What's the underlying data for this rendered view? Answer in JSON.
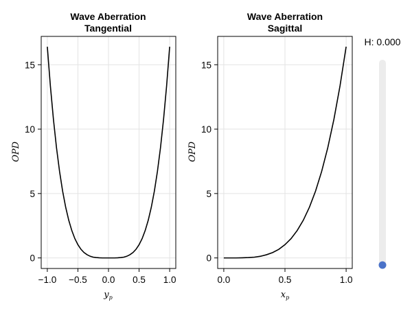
{
  "chart_data": [
    {
      "type": "line",
      "title_line1": "Wave Aberration",
      "title_line2": "Tangential",
      "xlabel": "y",
      "xlabel_sub": "p",
      "ylabel": "OPD",
      "xlim": [
        -1.1,
        1.1
      ],
      "ylim": [
        -0.82,
        17.2
      ],
      "xticks": [
        -1.0,
        -0.5,
        0.0,
        0.5,
        1.0
      ],
      "xtick_labels": [
        "−1.0",
        "−0.5",
        "0.0",
        "0.5",
        "1.0"
      ],
      "yticks": [
        0,
        5,
        10,
        15
      ],
      "ytick_labels": [
        "0",
        "5",
        "10",
        "15"
      ],
      "grid": true,
      "series": [
        {
          "name": "tangential",
          "color": "#000000",
          "x": [
            -1.0,
            -0.95,
            -0.9,
            -0.85,
            -0.8,
            -0.75,
            -0.7,
            -0.65,
            -0.6,
            -0.55,
            -0.5,
            -0.45,
            -0.4,
            -0.35,
            -0.3,
            -0.25,
            -0.2,
            -0.15,
            -0.1,
            -0.05,
            0.0,
            0.05,
            0.1,
            0.15,
            0.2,
            0.25,
            0.3,
            0.35,
            0.4,
            0.45,
            0.5,
            0.55,
            0.6,
            0.65,
            0.7,
            0.75,
            0.8,
            0.85,
            0.9,
            0.95,
            1.0
          ],
          "y": [
            16.4,
            13.36,
            10.76,
            8.56,
            6.72,
            5.19,
            3.94,
            2.93,
            2.13,
            1.5,
            1.03,
            0.67,
            0.42,
            0.25,
            0.13,
            0.06,
            0.03,
            0.01,
            0.0,
            0.0,
            0.0,
            0.0,
            0.0,
            0.01,
            0.03,
            0.06,
            0.13,
            0.25,
            0.42,
            0.67,
            1.03,
            1.5,
            2.13,
            2.93,
            3.94,
            5.19,
            6.72,
            8.56,
            10.76,
            13.36,
            16.4
          ]
        }
      ]
    },
    {
      "type": "line",
      "title_line1": "Wave Aberration",
      "title_line2": "Sagittal",
      "xlabel": "x",
      "xlabel_sub": "p",
      "ylabel": "OPD",
      "xlim": [
        -0.05,
        1.05
      ],
      "ylim": [
        -0.82,
        17.2
      ],
      "xticks": [
        0.0,
        0.5,
        1.0
      ],
      "xtick_labels": [
        "0.0",
        "0.5",
        "1.0"
      ],
      "yticks": [
        0,
        5,
        10,
        15
      ],
      "ytick_labels": [
        "0",
        "5",
        "10",
        "15"
      ],
      "grid": true,
      "series": [
        {
          "name": "sagittal",
          "color": "#000000",
          "x": [
            0.0,
            0.05,
            0.1,
            0.15,
            0.2,
            0.25,
            0.3,
            0.35,
            0.4,
            0.45,
            0.5,
            0.55,
            0.6,
            0.65,
            0.7,
            0.75,
            0.8,
            0.85,
            0.9,
            0.95,
            1.0
          ],
          "y": [
            0.0,
            0.0,
            0.0,
            0.01,
            0.03,
            0.06,
            0.13,
            0.25,
            0.42,
            0.67,
            1.03,
            1.5,
            2.13,
            2.93,
            3.94,
            5.19,
            6.72,
            8.56,
            10.76,
            13.36,
            16.4
          ]
        }
      ]
    }
  ],
  "slider": {
    "label": "H: 0.000",
    "value": 0.0,
    "min": 0.0,
    "max": 1.0,
    "track_color": "#ececec",
    "handle_color": "#4a72c8"
  }
}
